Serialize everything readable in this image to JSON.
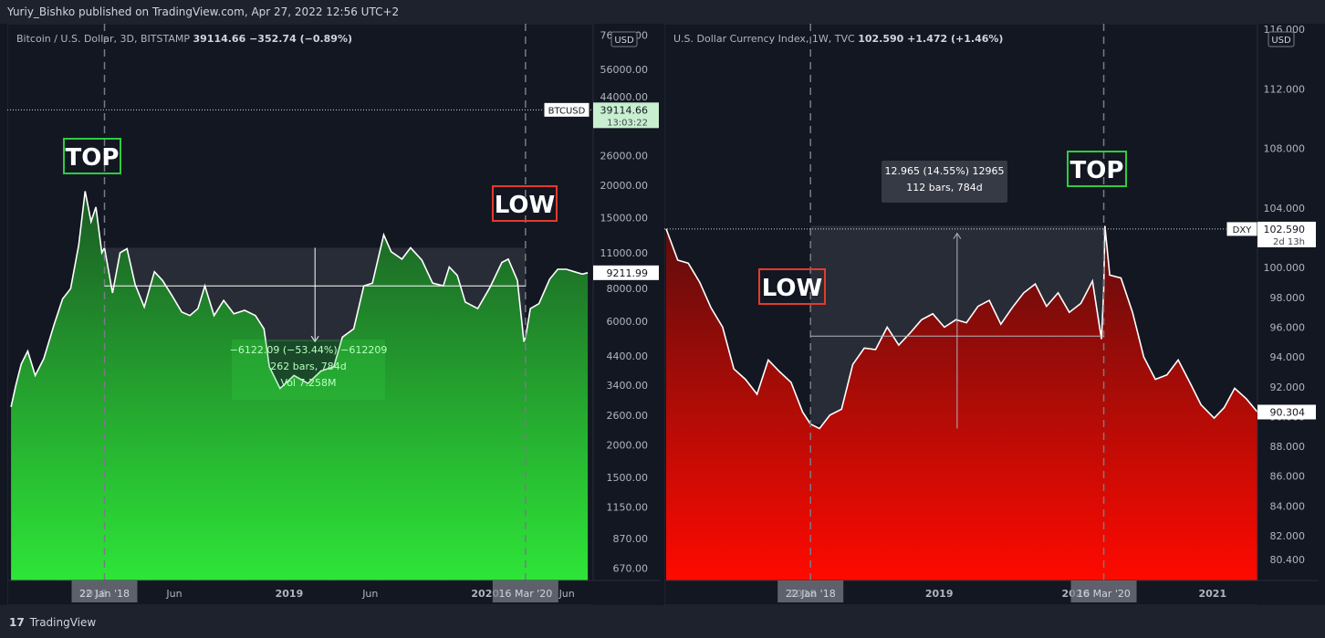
{
  "header": {
    "published_text": "Yuriy_Bishko published on TradingView.com, Apr 27, 2022 12:56 UTC+2"
  },
  "footer": {
    "logo_glyph": "17",
    "brand": "TradingView"
  },
  "colors": {
    "background": "#131722",
    "panel_border": "#2a2e39",
    "btc_fill_top": "#1a5a24",
    "btc_fill_bottom": "#2ee538",
    "dxy_fill_top": "#5c0d0d",
    "dxy_fill_bottom": "#ff0a00",
    "top_box": "#2ecc40",
    "low_box": "#e53a2a"
  },
  "chart_data": [
    {
      "type": "area",
      "title": "Bitcoin / U.S. Dollar, 3D, BITSTAMP",
      "last_price": "39114.66",
      "change": "−352.74 (−0.89%)",
      "currency": "USD",
      "scale": "log",
      "ylim": [
        600,
        80000
      ],
      "y_ticks": [
        "76000.00",
        "56000.00",
        "44000.00",
        "26000.00",
        "20000.00",
        "15000.00",
        "11000.00",
        "8000.00",
        "6000.00",
        "4400.00",
        "3400.00",
        "2600.00",
        "2000.00",
        "1500.00",
        "1150.00",
        "870.00",
        "670.00"
      ],
      "x_ticks": [
        "2018",
        "Jun",
        "2019",
        "Jun",
        "2020",
        "Jun"
      ],
      "x_highlight": [
        "22 Jan '18",
        "16 Mar '20"
      ],
      "price_tag": {
        "label": "BTCUSD",
        "value": "39114.66",
        "countdown": "13:03:22"
      },
      "current_tag": "9211.99",
      "annotations": {
        "top": "TOP",
        "low": "LOW"
      },
      "measure": {
        "line1": "−6122.09 (−53.44%) −612209",
        "line2": "262 bars, 784d",
        "line3": "Vol 7.258M"
      },
      "series": [
        {
          "x": [
            "2017-08-01",
            "2017-08-10",
            "2017-08-20",
            "2017-09-01",
            "2017-09-15",
            "2017-10-01",
            "2017-10-20",
            "2017-11-05",
            "2017-11-20",
            "2017-12-05",
            "2017-12-17",
            "2017-12-28",
            "2018-01-06",
            "2018-01-17",
            "2018-01-22",
            "2018-02-06",
            "2018-02-20",
            "2018-03-05",
            "2018-03-20",
            "2018-04-06",
            "2018-04-25",
            "2018-05-10",
            "2018-05-28",
            "2018-06-15",
            "2018-06-30",
            "2018-07-15",
            "2018-07-28",
            "2018-08-14",
            "2018-09-01",
            "2018-09-20",
            "2018-10-10",
            "2018-10-30",
            "2018-11-15",
            "2018-11-25",
            "2018-12-15",
            "2019-01-10",
            "2019-02-05",
            "2019-03-01",
            "2019-03-25",
            "2019-04-10",
            "2019-05-01",
            "2019-05-20",
            "2019-06-05",
            "2019-06-26",
            "2019-07-10",
            "2019-07-30",
            "2019-08-15",
            "2019-09-05",
            "2019-09-25",
            "2019-10-15",
            "2019-10-26",
            "2019-11-10",
            "2019-11-25",
            "2019-12-18",
            "2020-01-10",
            "2020-02-01",
            "2020-02-13",
            "2020-03-01",
            "2020-03-13",
            "2020-03-16",
            "2020-03-25",
            "2020-04-10",
            "2020-04-30",
            "2020-05-15",
            "2020-05-31",
            "2020-06-15",
            "2020-06-30",
            "2020-07-10"
          ],
          "y": [
            2800,
            3400,
            4100,
            4600,
            3700,
            4300,
            5800,
            7300,
            8000,
            11800,
            19000,
            14500,
            16500,
            11000,
            11500,
            7700,
            11000,
            11400,
            8300,
            6800,
            9300,
            8600,
            7500,
            6500,
            6300,
            6700,
            8200,
            6300,
            7200,
            6400,
            6600,
            6300,
            5600,
            4000,
            3300,
            3700,
            3450,
            3850,
            4000,
            5200,
            5600,
            8200,
            8400,
            12900,
            11100,
            10400,
            11500,
            10300,
            8400,
            8200,
            9700,
            9000,
            7100,
            6700,
            8100,
            10100,
            10400,
            8600,
            5000,
            5200,
            6700,
            7000,
            8700,
            9500,
            9500,
            9300,
            9100,
            9211.99
          ]
        }
      ]
    },
    {
      "type": "area",
      "title": "U.S. Dollar Currency Index, 1W, TVC",
      "last_price": "102.590",
      "change": "+1.472 (+1.46%)",
      "currency": "USD",
      "ylim": [
        79,
        116
      ],
      "y_ticks": [
        "116.000",
        "112.000",
        "108.000",
        "104.000",
        "100.000",
        "98.000",
        "96.000",
        "94.000",
        "92.000",
        "90.000",
        "88.000",
        "86.000",
        "84.000",
        "82.000",
        "80.400"
      ],
      "x_ticks": [
        "2018",
        "2019",
        "2020",
        "2021"
      ],
      "x_highlight": [
        "22 Jan '18",
        "16 Mar '20"
      ],
      "price_tag": {
        "label": "DXY",
        "value": "102.590",
        "countdown": "2d 13h"
      },
      "current_tag": "90.304",
      "annotations": {
        "top": "TOP",
        "low": "LOW"
      },
      "measure": {
        "line1": "12.965 (14.55%) 12965",
        "line2": "112 bars, 784d"
      },
      "series": [
        {
          "x": [
            "2017-01-01",
            "2017-02-01",
            "2017-03-01",
            "2017-04-01",
            "2017-05-01",
            "2017-06-01",
            "2017-07-01",
            "2017-08-01",
            "2017-09-01",
            "2017-10-01",
            "2017-11-01",
            "2017-12-01",
            "2018-01-01",
            "2018-01-22",
            "2018-02-15",
            "2018-03-15",
            "2018-04-15",
            "2018-05-15",
            "2018-06-15",
            "2018-07-15",
            "2018-08-15",
            "2018-09-15",
            "2018-10-15",
            "2018-11-15",
            "2018-12-15",
            "2019-01-15",
            "2019-02-15",
            "2019-03-15",
            "2019-04-15",
            "2019-05-15",
            "2019-06-15",
            "2019-07-15",
            "2019-08-15",
            "2019-09-15",
            "2019-10-15",
            "2019-11-15",
            "2019-12-15",
            "2020-01-15",
            "2020-02-15",
            "2020-03-05",
            "2020-03-10",
            "2020-03-16",
            "2020-03-19",
            "2020-04-01",
            "2020-05-01",
            "2020-06-01",
            "2020-07-01",
            "2020-08-01",
            "2020-09-01",
            "2020-10-01",
            "2020-11-01",
            "2020-12-01",
            "2021-01-05",
            "2021-02-01",
            "2021-03-01",
            "2021-04-01",
            "2021-05-01"
          ],
          "y": [
            102.6,
            100.5,
            100.3,
            99.0,
            97.3,
            96.0,
            93.2,
            92.5,
            91.5,
            93.8,
            93.0,
            92.3,
            90.3,
            89.5,
            89.2,
            90.1,
            90.5,
            93.5,
            94.6,
            94.5,
            96.0,
            94.8,
            95.6,
            96.5,
            96.9,
            96.0,
            96.5,
            96.3,
            97.4,
            97.8,
            96.2,
            97.3,
            98.3,
            98.9,
            97.4,
            98.3,
            97.0,
            97.6,
            99.1,
            96.0,
            95.2,
            98.5,
            102.8,
            99.5,
            99.3,
            97.0,
            94.0,
            92.5,
            92.8,
            93.8,
            92.3,
            90.8,
            89.9,
            90.6,
            91.9,
            91.2,
            90.3
          ]
        }
      ]
    }
  ]
}
